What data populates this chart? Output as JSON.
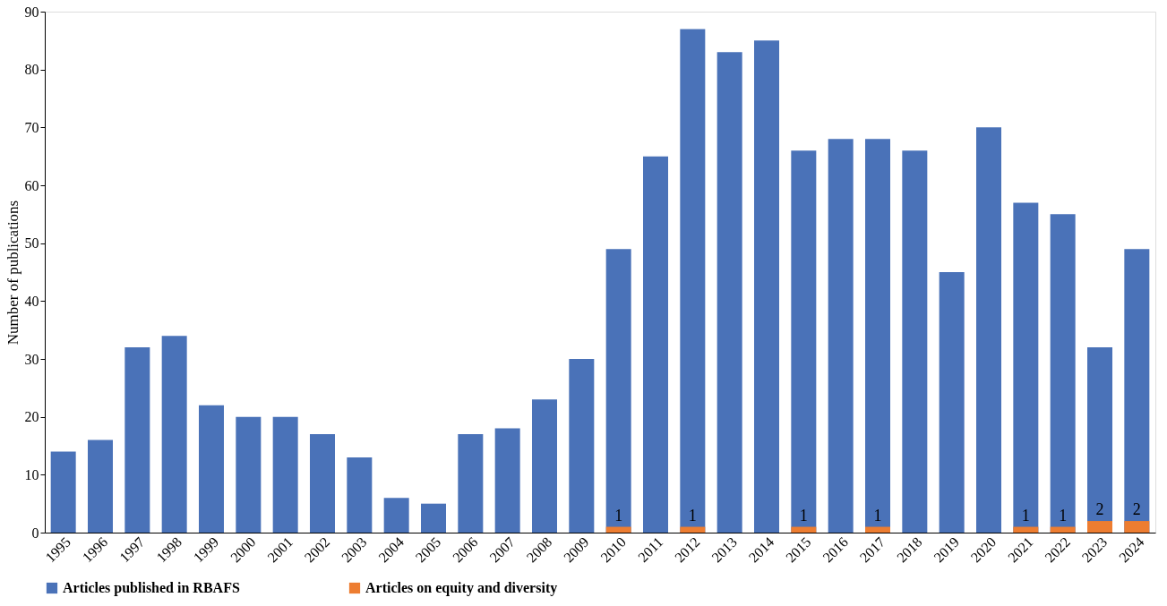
{
  "chart_data": {
    "type": "bar",
    "ylabel": "Number of publications",
    "categories": [
      "1995",
      "1996",
      "1997",
      "1998",
      "1999",
      "2000",
      "2001",
      "2002",
      "2003",
      "2004",
      "2005",
      "2006",
      "2007",
      "2008",
      "2009",
      "2010",
      "2011",
      "2012",
      "2013",
      "2014",
      "2015",
      "2016",
      "2017",
      "2018",
      "2019",
      "2020",
      "2021",
      "2022",
      "2023",
      "2024"
    ],
    "series": [
      {
        "name": "Articles published in RBAFS",
        "color": "#4a72b8",
        "values": [
          14,
          16,
          32,
          34,
          22,
          20,
          20,
          17,
          13,
          6,
          5,
          17,
          18,
          23,
          30,
          49,
          65,
          87,
          83,
          85,
          66,
          68,
          68,
          66,
          45,
          70,
          57,
          55,
          32,
          49
        ]
      },
      {
        "name": "Articles on equity and diversity",
        "color": "#ed7d31",
        "values": [
          0,
          0,
          0,
          0,
          0,
          0,
          0,
          0,
          0,
          0,
          0,
          0,
          0,
          0,
          0,
          1,
          0,
          1,
          0,
          0,
          1,
          0,
          1,
          0,
          0,
          0,
          1,
          1,
          2,
          2
        ],
        "value_labels": [
          null,
          null,
          null,
          null,
          null,
          null,
          null,
          null,
          null,
          null,
          null,
          null,
          null,
          null,
          null,
          "1",
          null,
          "1",
          null,
          null,
          "1",
          null,
          "1",
          null,
          null,
          null,
          "1",
          "1",
          "2",
          "2"
        ]
      }
    ],
    "ylim": [
      0,
      90
    ],
    "yticks": [
      0,
      10,
      20,
      30,
      40,
      50,
      60,
      70,
      80,
      90
    ],
    "grid": false,
    "legend": "bottom"
  }
}
